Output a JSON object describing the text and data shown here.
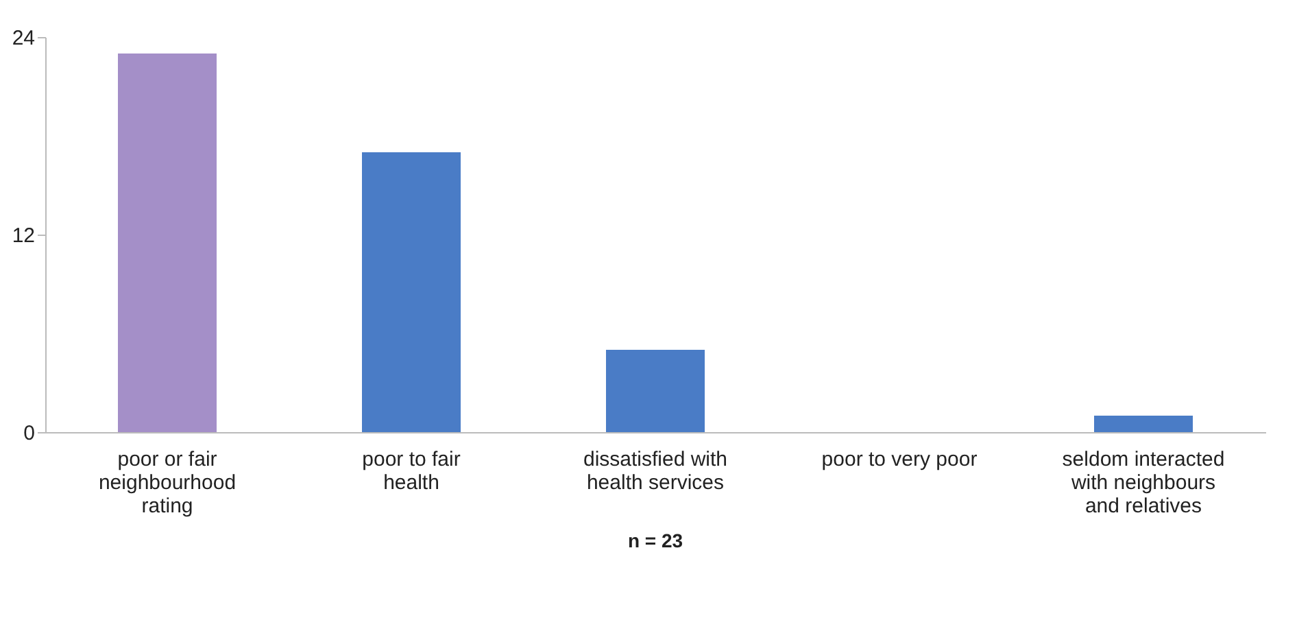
{
  "chart_data": {
    "type": "bar",
    "categories": [
      "poor or fair neighbourhood rating",
      "poor to fair health",
      "dissatisfied with health services",
      "poor to very poor",
      "seldom interacted with neighbours and relatives"
    ],
    "values": [
      23,
      17,
      5,
      0,
      1
    ],
    "colors": [
      "#a48fc8",
      "#4a7cc6",
      "#4a7cc6",
      "#4a7cc6",
      "#4a7cc6"
    ],
    "ylim": [
      0,
      24
    ],
    "yticks": [
      0,
      12,
      24
    ],
    "grid": false,
    "annotations": [
      "n = 23"
    ]
  }
}
